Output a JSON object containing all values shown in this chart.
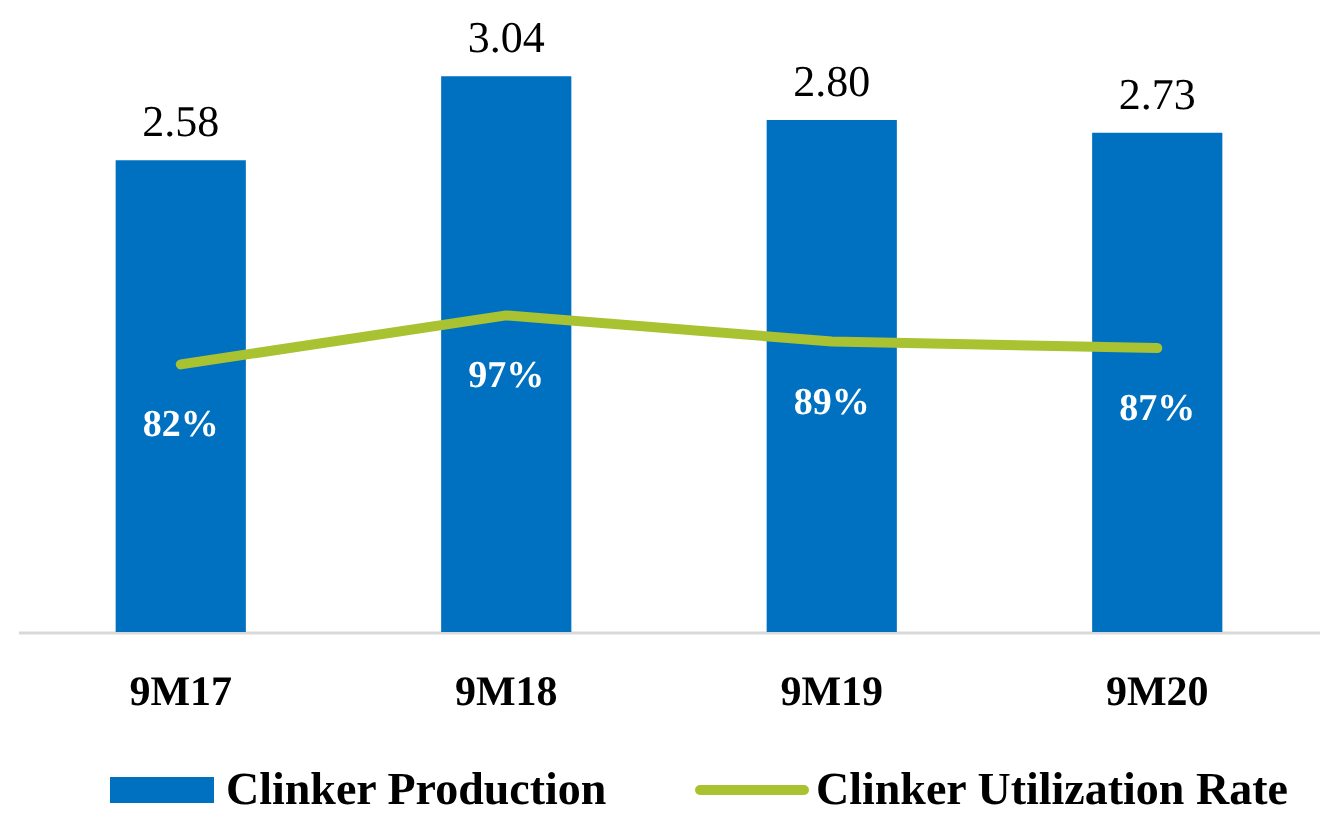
{
  "chart_data": {
    "type": "bar",
    "categories": [
      "9M17",
      "9M18",
      "9M19",
      "9M20"
    ],
    "series": [
      {
        "name": "Clinker Production",
        "type": "bar",
        "color": "#0070c0",
        "values": [
          2.58,
          3.04,
          2.8,
          2.73
        ],
        "value_labels": [
          "2.58",
          "3.04",
          "2.80",
          "2.73"
        ]
      },
      {
        "name": "Clinker Utilization Rate",
        "type": "line",
        "axis": "y2",
        "color": "#a8c232",
        "values": [
          82,
          97,
          89,
          87
        ],
        "value_labels": [
          "82%",
          "97%",
          "89%",
          "87%"
        ]
      }
    ],
    "legend": "bottom"
  }
}
